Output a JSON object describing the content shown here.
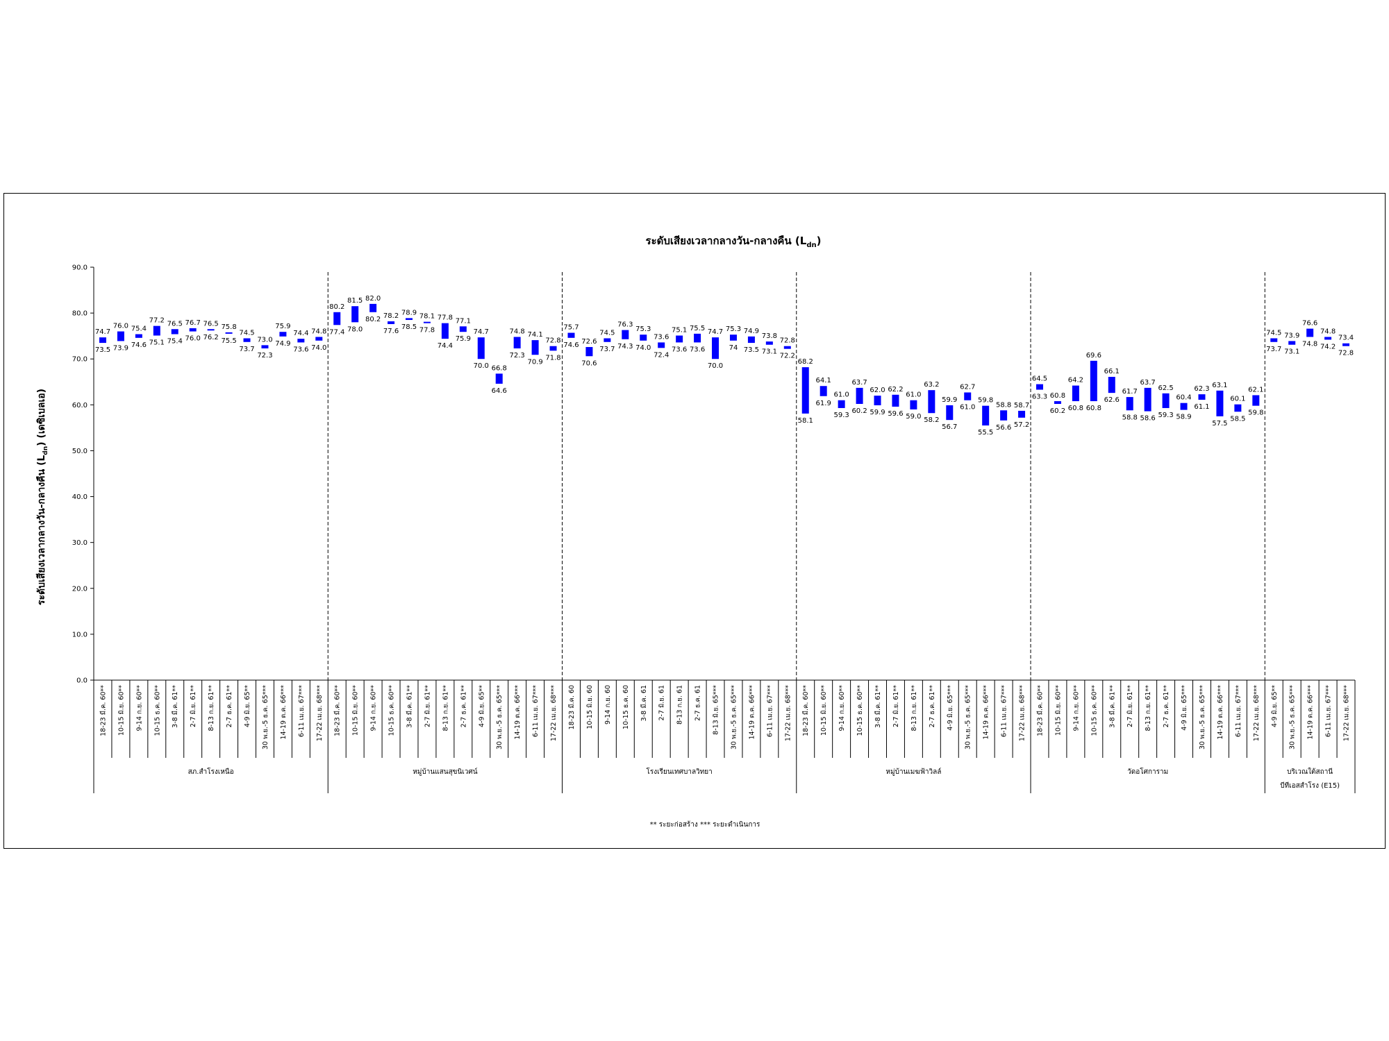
{
  "chart_data": {
    "type": "range-bar",
    "title": "ระดับเสียงเวลากลางวัน-กลางคืน (L",
    "title_sub": "dn",
    "title_end": ")",
    "ylabel": "ระดับเสียงเวลากลางวัน-กลางคืน (L",
    "ylabel_sub": "dn",
    "ylabel_end": ") (เดซิเบลเอ)",
    "ylim": [
      0,
      90
    ],
    "yticks": [
      "0.0",
      "10.0",
      "20.0",
      "30.0",
      "40.0",
      "50.0",
      "60.0",
      "70.0",
      "80.0",
      "90.0"
    ],
    "series_color": "#0000ff",
    "legend": "** ระยะก่อสร้าง *** ระยะดำเนินการ",
    "groups": [
      {
        "name": "สภ.สำโรงเหนือ",
        "points": [
          {
            "date": "18-23 มี.ค. 60**",
            "high": "74.7",
            "low": "73.5"
          },
          {
            "date": "10-15 มิ.ย. 60**",
            "high": "76.0",
            "low": "73.9"
          },
          {
            "date": "9-14 ก.ย. 60**",
            "high": "75.4",
            "low": "74.6"
          },
          {
            "date": "10-15 ธ.ค. 60**",
            "high": "77.2",
            "low": "75.1"
          },
          {
            "date": "3-8 มี.ค. 61**",
            "high": "76.5",
            "low": "75.4"
          },
          {
            "date": "2-7 มิ.ย. 61**",
            "high": "76.7",
            "low": "76.0"
          },
          {
            "date": "8-13 ก.ย. 61**",
            "high": "76.5",
            "low": "76.2"
          },
          {
            "date": "2-7 ธ.ค. 61**",
            "high": "75.8",
            "low": "75.5"
          },
          {
            "date": "4-9 มิ.ย. 65**",
            "high": "74.5",
            "low": "73.7"
          },
          {
            "date": "30 พ.ย.-5 ธ.ค. 65***",
            "high": "73.0",
            "low": "72.3"
          },
          {
            "date": "14-19 ต.ค. 66***",
            "high": "75.9",
            "low": "74.9"
          },
          {
            "date": "6-11 เม.ย. 67***",
            "high": "74.4",
            "low": "73.6"
          },
          {
            "date": "17-22 เม.ย. 68***",
            "high": "74.8",
            "low": "74.0"
          }
        ]
      },
      {
        "name": "หมู่บ้านแสนสุขนิเวศน์",
        "points": [
          {
            "date": "18-23 มี.ค. 60**",
            "high": "80.2",
            "low": "77.4"
          },
          {
            "date": "10-15 มิ.ย. 60**",
            "high": "81.5",
            "low": "78.0"
          },
          {
            "date": "9-14 ก.ย. 60**",
            "high": "82.0",
            "low": "80.2"
          },
          {
            "date": "10-15 ธ.ค. 60**",
            "high": "78.2",
            "low": "77.6"
          },
          {
            "date": "3-8 มี.ค. 61**",
            "high": "78.9",
            "low": "78.5"
          },
          {
            "date": "2-7 มิ.ย. 61**",
            "high": "78.1",
            "low": "77.8"
          },
          {
            "date": "8-13 ก.ย. 61**",
            "high": "77.8",
            "low": "74.4"
          },
          {
            "date": "2-7 ธ.ค. 61**",
            "high": "77.1",
            "low": "75.9"
          },
          {
            "date": "4-9 มิ.ย. 65**",
            "high": "74.7",
            "low": "70.0"
          },
          {
            "date": "30 พ.ย.-5 ธ.ค. 65***",
            "high": "66.8",
            "low": "64.6"
          },
          {
            "date": "14-19 ต.ค. 66***",
            "high": "74.8",
            "low": "72.3"
          },
          {
            "date": "6-11 เม.ย. 67***",
            "high": "74.1",
            "low": "70.9"
          },
          {
            "date": "17-22 เม.ย. 68***",
            "high": "72.8",
            "low": "71.8"
          }
        ]
      },
      {
        "name": "โรงเรียนเทศบาลวิทยา",
        "points": [
          {
            "date": "18-23 มี.ค. 60",
            "high": "75.7",
            "low": "74.6"
          },
          {
            "date": "10-15 มิ.ย. 60",
            "high": "72.6",
            "low": "70.6"
          },
          {
            "date": "9-14 ก.ย. 60",
            "high": "74.5",
            "low": "73.7"
          },
          {
            "date": "10-15 ธ.ค. 60",
            "high": "76.3",
            "low": "74.3"
          },
          {
            "date": "3-8 มี.ค. 61",
            "high": "75.3",
            "low": "74.0"
          },
          {
            "date": "2-7 มิ.ย. 61",
            "high": "73.6",
            "low": "72.4"
          },
          {
            "date": "8-13 ก.ย. 61",
            "high": "75.1",
            "low": "73.6"
          },
          {
            "date": "2-7 ธ.ค. 61",
            "high": "75.5",
            "low": "73.6"
          },
          {
            "date": "8-13 มิ.ย. 65***",
            "high": "74.7",
            "low": "70.0"
          },
          {
            "date": "30 พ.ย.-5 ธ.ค. 65***",
            "high": "75.3",
            "low": "74"
          },
          {
            "date": "14-19 ต.ค. 66***",
            "high": "74.9",
            "low": "73.5"
          },
          {
            "date": "6-11 เม.ย. 67***",
            "high": "73.8",
            "low": "73.1"
          },
          {
            "date": "17-22 เม.ย. 68***",
            "high": "72.8",
            "low": "72.2"
          }
        ]
      },
      {
        "name": "หมู่บ้านเมฆฟ้าวิลล์",
        "points": [
          {
            "date": "18-23 มี.ค. 60**",
            "high": "68.2",
            "low": "58.1"
          },
          {
            "date": "10-15 มิ.ย. 60**",
            "high": "64.1",
            "low": "61.9"
          },
          {
            "date": "9-14 ก.ย. 60**",
            "high": "61.0",
            "low": "59.3"
          },
          {
            "date": "10-15 ธ.ค. 60**",
            "high": "63.7",
            "low": "60.2"
          },
          {
            "date": "3-8 มี.ค. 61**",
            "high": "62.0",
            "low": "59.9"
          },
          {
            "date": "2-7 มิ.ย. 61**",
            "high": "62.2",
            "low": "59.6"
          },
          {
            "date": "8-13 ก.ย. 61**",
            "high": "61.0",
            "low": "59.0"
          },
          {
            "date": "2-7 ธ.ค. 61**",
            "high": "63.2",
            "low": "58.2"
          },
          {
            "date": "4-9 มิ.ย. 65***",
            "high": "59.9",
            "low": "56.7"
          },
          {
            "date": "30 พ.ย.-5 ธ.ค. 65***",
            "high": "62.7",
            "low": "61.0"
          },
          {
            "date": "14-19 ต.ค. 66***",
            "high": "59.8",
            "low": "55.5"
          },
          {
            "date": "6-11 เม.ย. 67***",
            "high": "58.8",
            "low": "56.6"
          },
          {
            "date": "17-22 เม.ย. 68***",
            "high": "58.7",
            "low": "57.2"
          }
        ]
      },
      {
        "name": "วัดอโศการาม",
        "points": [
          {
            "date": "18-23 มี.ค. 60**",
            "high": "64.5",
            "low": "63.3"
          },
          {
            "date": "10-15 มิ.ย. 60**",
            "high": "60.8",
            "low": "60.2"
          },
          {
            "date": "9-14 ก.ย. 60**",
            "high": "64.2",
            "low": "60.8"
          },
          {
            "date": "10-15 ธ.ค. 60**",
            "high": "69.6",
            "low": "60.8"
          },
          {
            "date": "3-8 มี.ค. 61**",
            "high": "66.1",
            "low": "62.6"
          },
          {
            "date": "2-7 มิ.ย. 61**",
            "high": "61.7",
            "low": "58.8"
          },
          {
            "date": "8-13 ก.ย. 61**",
            "high": "63.7",
            "low": "58.6"
          },
          {
            "date": "2-7 ธ.ค. 61**",
            "high": "62.5",
            "low": "59.3"
          },
          {
            "date": "4-9 มิ.ย. 65***",
            "high": "60.4",
            "low": "58.9"
          },
          {
            "date": "30 พ.ย.-5 ธ.ค. 65***",
            "high": "62.3",
            "low": "61.1"
          },
          {
            "date": "14-19 ต.ค. 66***",
            "high": "63.1",
            "low": "57.5"
          },
          {
            "date": "6-11 เม.ย. 67***",
            "high": "60.1",
            "low": "58.5"
          },
          {
            "date": "17-22 เม.ย. 68***",
            "high": "62.1",
            "low": "59.8"
          }
        ]
      },
      {
        "name": "บริเวณใต้สถานี",
        "name2": "บีทีเอสสำโรง (E15)",
        "points": [
          {
            "date": "4-9 มิ.ย. 65**",
            "high": "74.5",
            "low": "73.7"
          },
          {
            "date": "30 พ.ย.-5 ธ.ค. 65***",
            "high": "73.9",
            "low": "73.1"
          },
          {
            "date": "14-19 ต.ค. 66***",
            "high": "76.6",
            "low": "74.8"
          },
          {
            "date": "6-11 เม.ย. 67***",
            "high": "74.8",
            "low": "74.2"
          },
          {
            "date": "17-22 เม.ย. 68***",
            "high": "73.4",
            "low": "72.8"
          }
        ]
      }
    ]
  }
}
